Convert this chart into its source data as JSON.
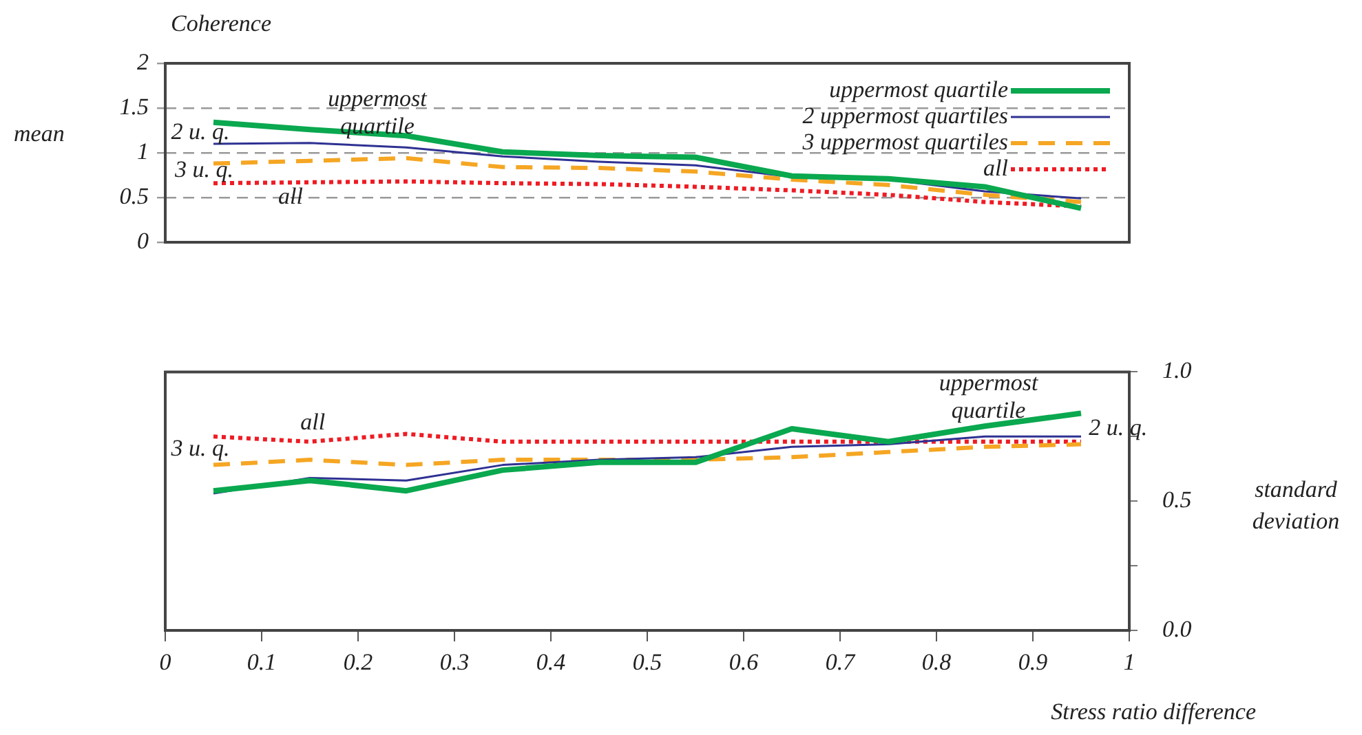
{
  "chart_data": [
    {
      "type": "line",
      "title": "Coherence",
      "ylabel": "mean",
      "xlim": [
        0,
        1
      ],
      "ylim": [
        0,
        2
      ],
      "yticks": [
        0,
        0.5,
        1,
        1.5,
        2
      ],
      "tick_labels": "y",
      "grid": "y",
      "legend": "top right",
      "marker": "none",
      "x": [
        0.05,
        0.15,
        0.25,
        0.35,
        0.45,
        0.55,
        0.65,
        0.75,
        0.85,
        0.95
      ],
      "series": [
        {
          "name": "uppermost quartile",
          "color": "#0aa84f",
          "line_style": "solid",
          "values": [
            1.34,
            1.26,
            1.19,
            1.01,
            0.97,
            0.95,
            0.74,
            0.71,
            0.62,
            0.38
          ]
        },
        {
          "name": "2 uppermost quartiles",
          "color": "#2e3192",
          "line_style": "solid",
          "values": [
            1.1,
            1.11,
            1.06,
            0.96,
            0.9,
            0.86,
            0.73,
            0.7,
            0.57,
            0.49
          ]
        },
        {
          "name": "3 uppermost quartiles",
          "color": "#f5a623",
          "line_style": "dashed",
          "values": [
            0.88,
            0.91,
            0.94,
            0.84,
            0.83,
            0.79,
            0.7,
            0.64,
            0.53,
            0.45
          ]
        },
        {
          "name": "all",
          "color": "#ee1c24",
          "line_style": "dotted",
          "values": [
            0.66,
            0.67,
            0.68,
            0.66,
            0.65,
            0.62,
            0.58,
            0.53,
            0.45,
            0.4
          ]
        }
      ],
      "annotations": [
        "uppermost quartile",
        "2 u. q.",
        "3 u. q.",
        "all"
      ]
    },
    {
      "type": "line",
      "xlabel": "Stress ratio difference",
      "y2label": "standard deviation",
      "xlim": [
        0,
        1
      ],
      "xticks": [
        0,
        0.1,
        0.2,
        0.3,
        0.4,
        0.5,
        0.6,
        0.7,
        0.8,
        0.9,
        1
      ],
      "y2lim": [
        0,
        1
      ],
      "y2ticks": [
        {
          "value": 0,
          "label": "0.0"
        },
        {
          "value": 0.25,
          "label": null
        },
        {
          "value": 0.5,
          "label": "0.5"
        },
        {
          "value": 0.75,
          "label": null
        },
        {
          "value": 1,
          "label": "1.0"
        }
      ],
      "grid": false,
      "marker": "none",
      "x": [
        0.05,
        0.15,
        0.25,
        0.35,
        0.45,
        0.55,
        0.65,
        0.75,
        0.85,
        0.95
      ],
      "series": [
        {
          "color": "#0aa84f",
          "line_style": "solid",
          "axis": "y2",
          "values": [
            0.54,
            0.58,
            0.54,
            0.62,
            0.65,
            0.65,
            0.78,
            0.73,
            0.79,
            0.84
          ]
        },
        {
          "color": "#2e3192",
          "line_style": "solid",
          "axis": "y2",
          "values": [
            0.53,
            0.59,
            0.58,
            0.64,
            0.66,
            0.67,
            0.71,
            0.72,
            0.75,
            0.75
          ]
        },
        {
          "color": "#f5a623",
          "line_style": "dashed",
          "axis": "y2",
          "values": [
            0.64,
            0.66,
            0.64,
            0.66,
            0.66,
            0.66,
            0.67,
            0.69,
            0.71,
            0.72
          ]
        },
        {
          "color": "#ee1c24",
          "line_style": "dotted",
          "axis": "y2",
          "values": [
            0.75,
            0.73,
            0.76,
            0.73,
            0.73,
            0.73,
            0.73,
            0.73,
            0.73,
            0.73
          ]
        }
      ],
      "annotations": [
        "all",
        "3 u. q.",
        "2 u. q.",
        "uppermost quartile"
      ]
    }
  ]
}
